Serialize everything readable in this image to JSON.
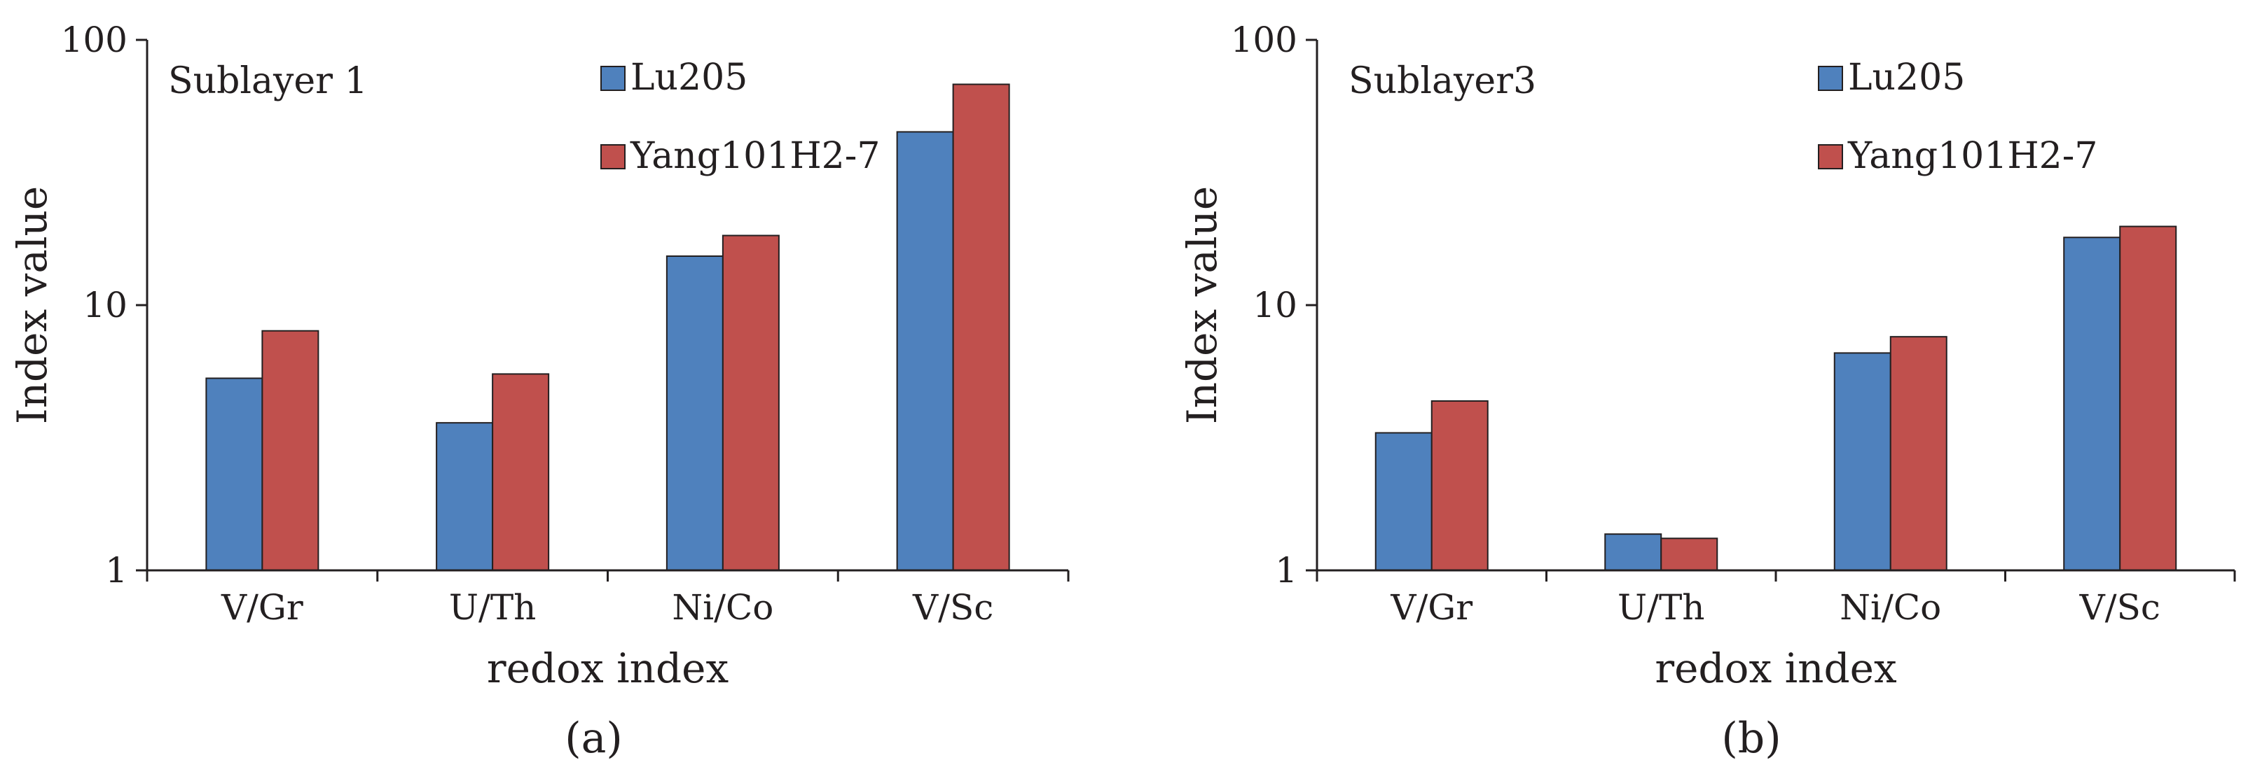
{
  "chart_data": [
    {
      "type": "bar",
      "panel_label": "(a)",
      "title": "Sublayer 1",
      "xlabel": "redox index",
      "ylabel": "Index value",
      "yscale": "log",
      "ylim": [
        1,
        100
      ],
      "yticks": [
        "1",
        "10",
        "100"
      ],
      "categories": [
        "V/Gr",
        "U/Th",
        "Ni/Co",
        "V/Sc"
      ],
      "series": [
        {
          "name": "Lu205",
          "color": "#4f81bd",
          "values": [
            5.3,
            3.6,
            15.3,
            45
          ]
        },
        {
          "name": "Yang101H2-7",
          "color": "#c0504d",
          "values": [
            8.0,
            5.5,
            18.3,
            68
          ]
        }
      ],
      "legend_position": "top-right"
    },
    {
      "type": "bar",
      "panel_label": "(b)",
      "title": "Sublayer3",
      "xlabel": "redox index",
      "ylabel": "Index value",
      "yscale": "log",
      "ylim": [
        1,
        100
      ],
      "yticks": [
        "1",
        "10",
        "100"
      ],
      "categories": [
        "V/Gr",
        "U/Th",
        "Ni/Co",
        "V/Sc"
      ],
      "series": [
        {
          "name": "Lu205",
          "color": "#4f81bd",
          "values": [
            3.3,
            1.37,
            6.6,
            18.0
          ]
        },
        {
          "name": "Yang101H2-7",
          "color": "#c0504d",
          "values": [
            4.35,
            1.32,
            7.6,
            19.8
          ]
        }
      ],
      "legend_position": "top-right"
    }
  ]
}
